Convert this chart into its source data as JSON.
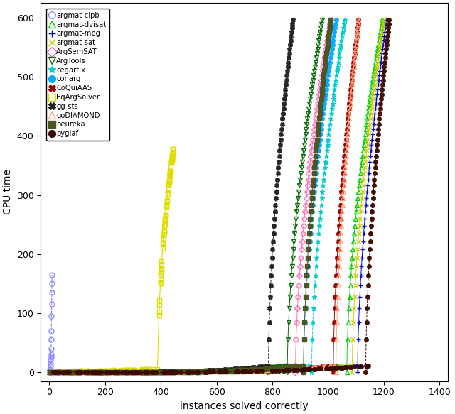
{
  "xlabel": "instances solved correctly",
  "ylabel": "CPU time",
  "xlim": [
    -30,
    1430
  ],
  "ylim": [
    -15,
    625
  ],
  "xticks": [
    0,
    200,
    400,
    600,
    800,
    1000,
    1200,
    1400
  ],
  "yticks": [
    0,
    100,
    200,
    300,
    400,
    500,
    600
  ],
  "solvers": [
    {
      "name": "argmat-clpb",
      "color": "#8888FF",
      "marker": "o",
      "hollow": true,
      "linestyle": "--",
      "n_low": 25,
      "x_low_max": 7,
      "y_low_max": 20,
      "n_high": 8,
      "x_high_start": 7,
      "x_high_end": 10,
      "y_high_max": 165,
      "total": 30
    },
    {
      "name": "argmat-dvisat",
      "color": "#00CC00",
      "marker": "^",
      "hollow": true,
      "linestyle": "-",
      "x_flat_end": 1100,
      "x_end": 1195,
      "y_max": 600,
      "steep_start": 1080
    },
    {
      "name": "argmat-mpg",
      "color": "#0000CC",
      "marker": "+",
      "hollow": false,
      "linestyle": "-",
      "x_flat_end": 1140,
      "x_end": 1210,
      "y_max": 600,
      "steep_start": 1140
    },
    {
      "name": "argmat-sat",
      "color": "#CCCC00",
      "marker": "x",
      "hollow": false,
      "linestyle": "-",
      "x_flat_end": 1120,
      "x_end": 1200,
      "y_max": 600,
      "steep_start": 1120
    },
    {
      "name": "ArgSemSAT",
      "color": "#FF69B4",
      "marker": "D",
      "hollow": true,
      "linestyle": "-",
      "x_flat_end": 910,
      "x_end": 1010,
      "y_max": 600,
      "steep_start": 880
    },
    {
      "name": "ArgTools",
      "color": "#006400",
      "marker": "v",
      "hollow": true,
      "linestyle": "-",
      "x_flat_end": 880,
      "x_end": 980,
      "y_max": 600,
      "steep_start": 850
    },
    {
      "name": "cegartix",
      "color": "#00CCCC",
      "marker": "*",
      "hollow": false,
      "linestyle": "--",
      "x_flat_end": 970,
      "x_end": 1060,
      "y_max": 600,
      "steep_start": 940
    },
    {
      "name": "conarg",
      "color": "#00AAFF",
      "marker": "o",
      "hollow": false,
      "linestyle": "--",
      "x_flat_end": 940,
      "x_end": 1030,
      "y_max": 600,
      "steep_start": 910
    },
    {
      "name": "CoQuiAAS",
      "color": "#990000",
      "marker": "X",
      "hollow": false,
      "linestyle": "-",
      "x_flat_end": 1050,
      "x_end": 1110,
      "y_max": 600,
      "steep_start": 1030
    },
    {
      "name": "EqArgSolver",
      "color": "#DDDD00",
      "marker": "s",
      "hollow": true,
      "linestyle": "-",
      "x_flat_end": 390,
      "x_end": 445,
      "y_max": 380,
      "steep_start": 380
    },
    {
      "name": "gg-sts",
      "color": "#222222",
      "marker": "X",
      "hollow": false,
      "linestyle": "--",
      "x_flat_end": 810,
      "x_end": 875,
      "y_max": 600,
      "steep_start": 790
    },
    {
      "name": "goDIAMOND",
      "color": "#FFA07A",
      "marker": "^",
      "hollow": true,
      "linestyle": "-",
      "x_flat_end": 1060,
      "x_end": 1110,
      "y_max": 600,
      "steep_start": 1045
    },
    {
      "name": "heureka",
      "color": "#4B5320",
      "marker": "s",
      "hollow": false,
      "linestyle": "-",
      "x_flat_end": 940,
      "x_end": 1010,
      "y_max": 600,
      "steep_start": 915
    },
    {
      "name": "pyglaf",
      "color": "#3B0A00",
      "marker": "o",
      "hollow": false,
      "linestyle": "--",
      "x_flat_end": 1170,
      "x_end": 1220,
      "y_max": 600,
      "steep_start": 1160
    }
  ]
}
